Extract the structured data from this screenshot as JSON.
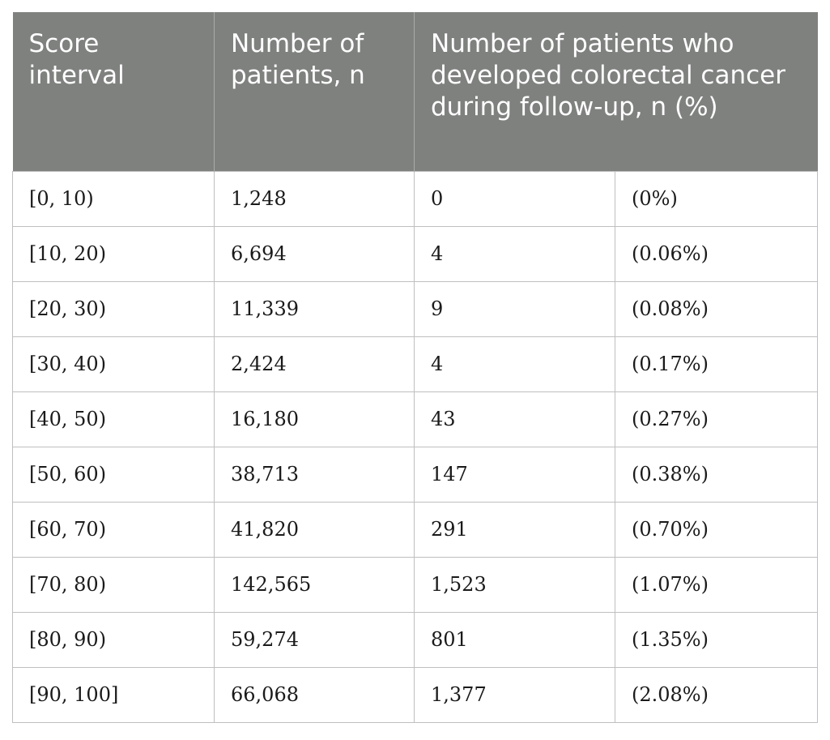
{
  "table": {
    "headers": {
      "score_interval": "Score interval",
      "number_of_patients": "Number of patients, n",
      "developed_cancer": "Number of patients who developed colorectal cancer during follow-up, n (%)"
    },
    "rows": [
      {
        "interval": "[0, 10)",
        "patients": "1,248",
        "cancer_n": "0",
        "cancer_pct": "(0%)"
      },
      {
        "interval": "[10, 20)",
        "patients": "6,694",
        "cancer_n": "4",
        "cancer_pct": "(0.06%)"
      },
      {
        "interval": "[20, 30)",
        "patients": "11,339",
        "cancer_n": "9",
        "cancer_pct": "(0.08%)"
      },
      {
        "interval": "[30, 40)",
        "patients": "2,424",
        "cancer_n": "4",
        "cancer_pct": "(0.17%)"
      },
      {
        "interval": "[40, 50)",
        "patients": "16,180",
        "cancer_n": "43",
        "cancer_pct": "(0.27%)"
      },
      {
        "interval": "[50, 60)",
        "patients": "38,713",
        "cancer_n": "147",
        "cancer_pct": "(0.38%)"
      },
      {
        "interval": "[60, 70)",
        "patients": "41,820",
        "cancer_n": "291",
        "cancer_pct": "(0.70%)"
      },
      {
        "interval": "[70, 80)",
        "patients": "142,565",
        "cancer_n": "1,523",
        "cancer_pct": "(1.07%)"
      },
      {
        "interval": "[80, 90)",
        "patients": "59,274",
        "cancer_n": "801",
        "cancer_pct": "(1.35%)"
      },
      {
        "interval": "[90, 100]",
        "patients": "66,068",
        "cancer_n": "1,377",
        "cancer_pct": "(2.08%)"
      }
    ]
  }
}
